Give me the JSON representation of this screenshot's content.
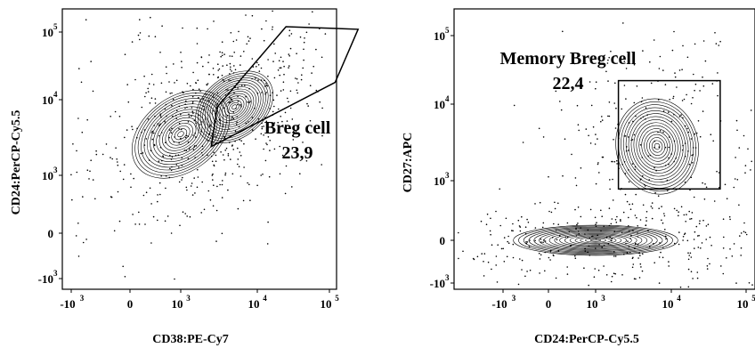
{
  "chart_data": [
    {
      "type": "contour",
      "xlabel": "CD38:PE-Cy7",
      "ylabel": "CD24:PerCP-Cy5.5",
      "x_ticks": [
        {
          "base": "-10",
          "exp": "3",
          "value": -1000
        },
        {
          "base": "0",
          "exp": "",
          "value": 0
        },
        {
          "base": "10",
          "exp": "3",
          "value": 1000
        },
        {
          "base": "10",
          "exp": "4",
          "value": 10000
        },
        {
          "base": "10",
          "exp": "5",
          "value": 100000
        }
      ],
      "y_ticks": [
        {
          "base": "-10",
          "exp": "3",
          "value": -1000
        },
        {
          "base": "0",
          "exp": "",
          "value": 0
        },
        {
          "base": "10",
          "exp": "3",
          "value": 1000
        },
        {
          "base": "10",
          "exp": "4",
          "value": 10000
        },
        {
          "base": "10",
          "exp": "5",
          "value": 100000
        }
      ],
      "gate": {
        "name": "Breg cell",
        "percent": "23,9",
        "shape": "polygon",
        "vertices": [
          [
            3000,
            8000
          ],
          [
            25000,
            120000
          ],
          [
            250000,
            110000
          ],
          [
            120000,
            18000
          ],
          [
            2500,
            2400
          ]
        ]
      },
      "populations": [
        {
          "center": [
            1000,
            3500
          ],
          "spread": [
            0.75,
            0.55
          ],
          "correlation": 0.75
        },
        {
          "center": [
            5000,
            8000
          ],
          "spread": [
            0.6,
            0.45
          ],
          "correlation": 0.8
        }
      ]
    },
    {
      "type": "contour",
      "xlabel": "CD24:PerCP-Cy5.5",
      "ylabel": "CD27:APC",
      "x_ticks": [
        {
          "base": "-10",
          "exp": "3",
          "value": -1000
        },
        {
          "base": "0",
          "exp": "",
          "value": 0
        },
        {
          "base": "10",
          "exp": "3",
          "value": 1000
        },
        {
          "base": "10",
          "exp": "4",
          "value": 10000
        },
        {
          "base": "10",
          "exp": "5",
          "value": 100000
        }
      ],
      "y_ticks": [
        {
          "base": "-10",
          "exp": "3",
          "value": -1000
        },
        {
          "base": "0",
          "exp": "",
          "value": 0
        },
        {
          "base": "10",
          "exp": "3",
          "value": 1000
        },
        {
          "base": "10",
          "exp": "4",
          "value": 10000
        },
        {
          "base": "10",
          "exp": "5",
          "value": 100000
        }
      ],
      "gate": {
        "name": "Memory Breg cell",
        "percent": "22,4",
        "shape": "rectangle",
        "x_range": [
          2000,
          45000
        ],
        "y_range": [
          600,
          22000
        ]
      },
      "populations": [
        {
          "center": [
            1000,
            0
          ],
          "spread": [
            1.1,
            0.22
          ],
          "correlation": 0.0
        },
        {
          "center": [
            6500,
            2800
          ],
          "spread": [
            0.55,
            0.7
          ],
          "correlation": 0.2
        }
      ]
    }
  ]
}
